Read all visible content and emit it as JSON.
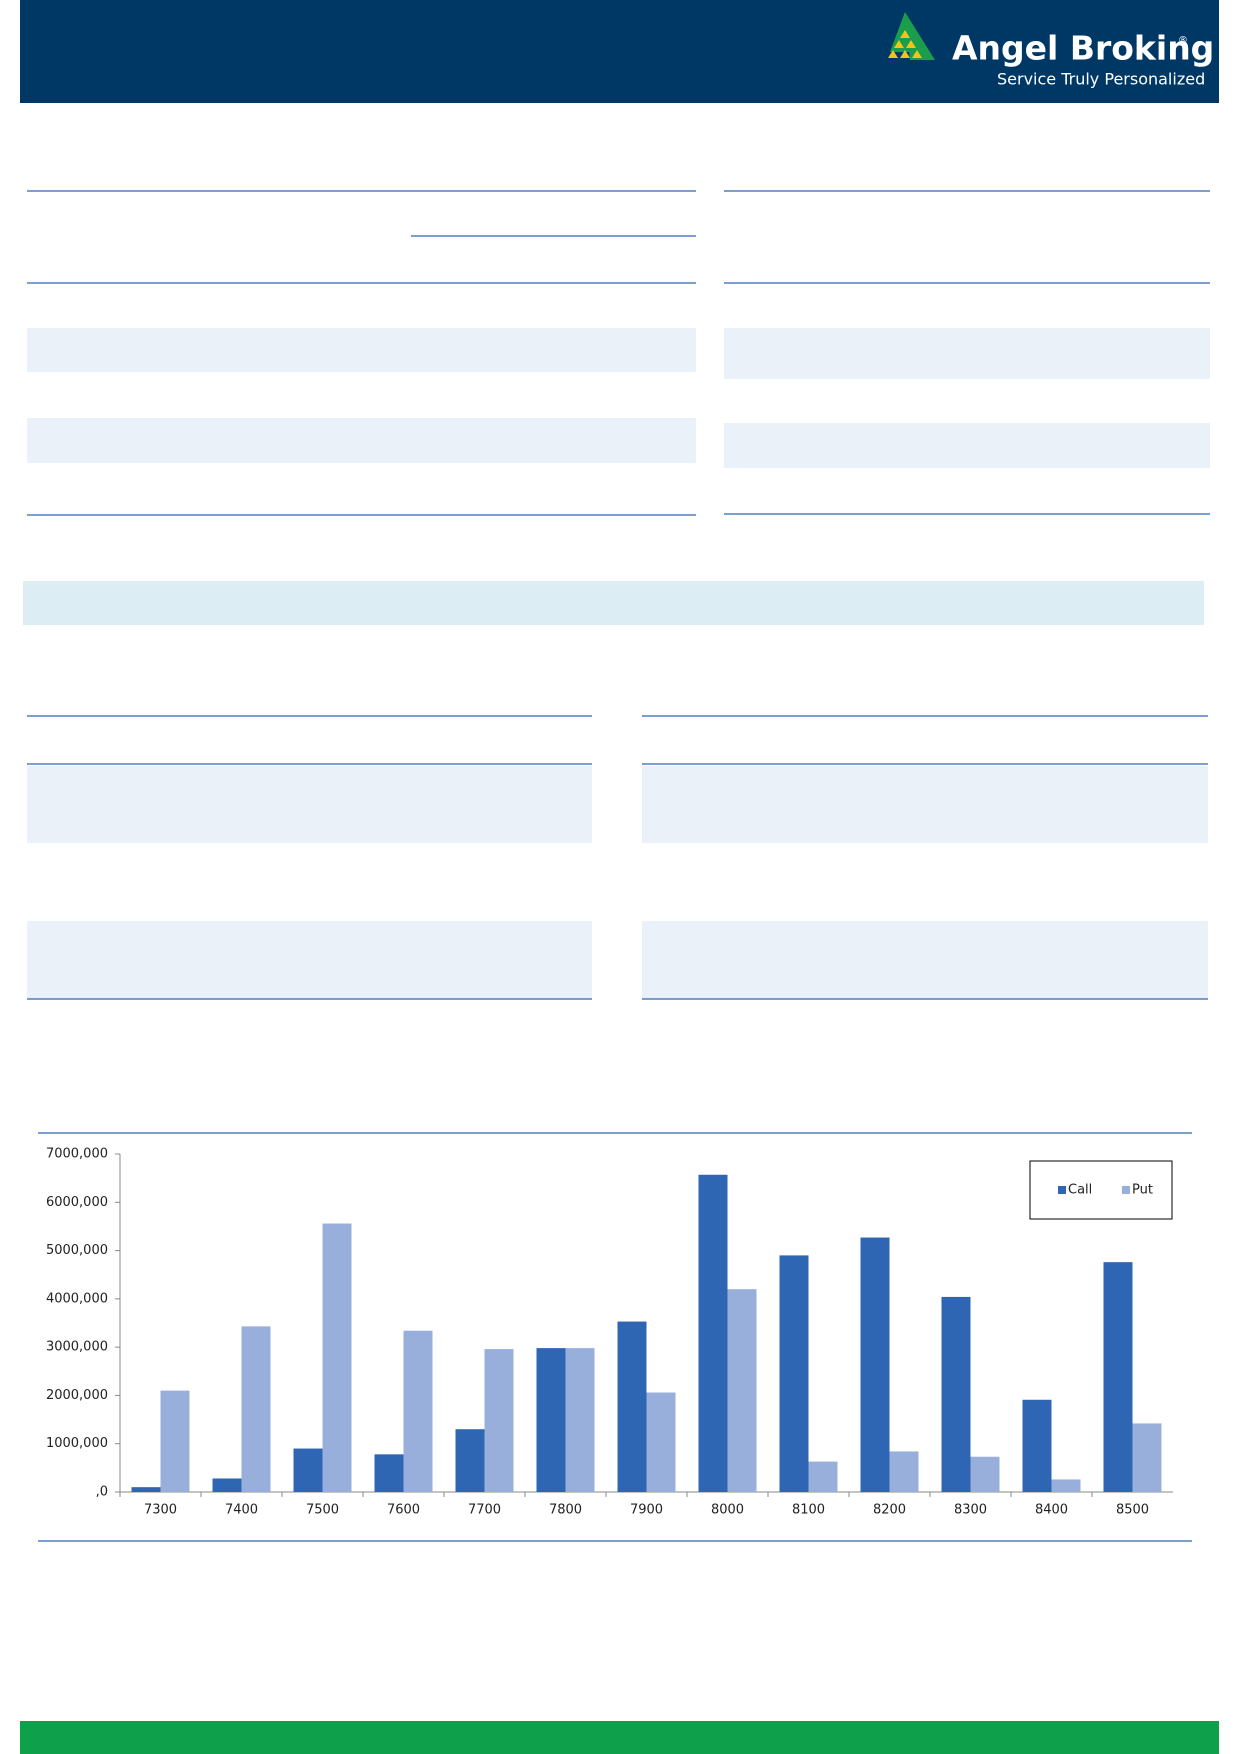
{
  "header": {
    "brand": "Angel Broking",
    "tagline": "Service Truly Personalized"
  },
  "chart_data": {
    "type": "bar",
    "categories": [
      "7300",
      "7400",
      "7500",
      "7600",
      "7700",
      "7800",
      "7900",
      "8000",
      "8100",
      "8200",
      "8300",
      "8400",
      "8500"
    ],
    "series": [
      {
        "name": "Call",
        "color": "#2f66b3",
        "values": [
          100000,
          280000,
          900000,
          780000,
          1300000,
          2980000,
          3530000,
          6570000,
          4900000,
          5270000,
          4040000,
          1910000,
          4760000
        ]
      },
      {
        "name": "Put",
        "color": "#98aedb",
        "values": [
          2100000,
          3430000,
          5560000,
          3340000,
          2960000,
          2980000,
          2060000,
          4200000,
          630000,
          840000,
          730000,
          260000,
          1420000
        ]
      }
    ],
    "ylim": [
      0,
      7000000
    ],
    "yticks": [
      {
        "value": 0,
        "label": ",0"
      },
      {
        "value": 1000000,
        "label": "1000,000"
      },
      {
        "value": 2000000,
        "label": "2000,000"
      },
      {
        "value": 3000000,
        "label": "3000,000"
      },
      {
        "value": 4000000,
        "label": "4000,000"
      },
      {
        "value": 5000000,
        "label": "5000,000"
      },
      {
        "value": 6000000,
        "label": "6000,000"
      },
      {
        "value": 7000000,
        "label": "7000,000"
      }
    ],
    "legend": "top-right"
  }
}
